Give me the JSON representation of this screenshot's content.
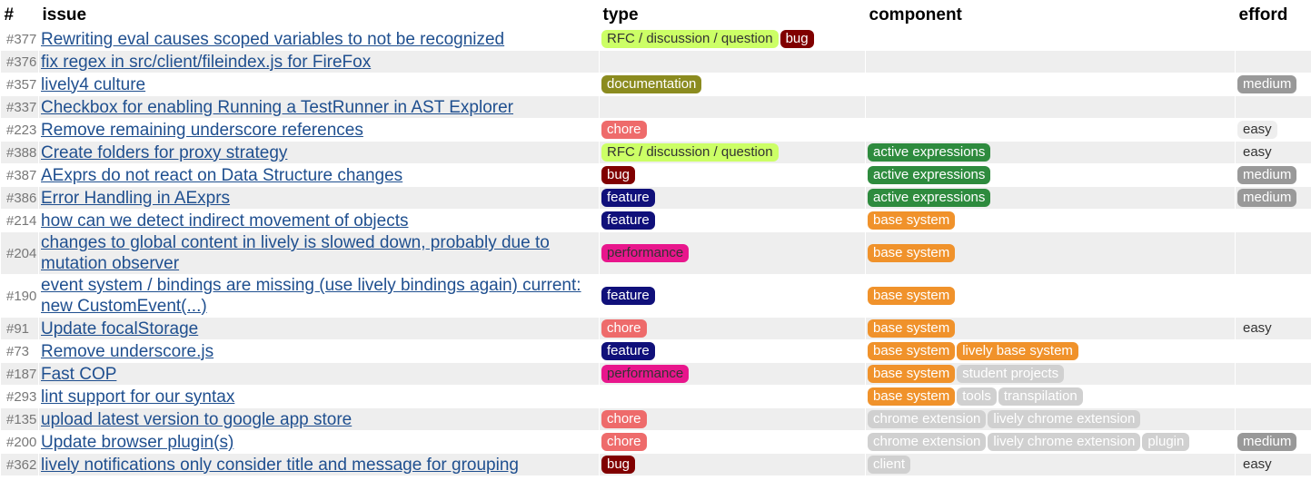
{
  "header": {
    "number": "#",
    "issue": "issue",
    "type": "type",
    "component": "component",
    "efford": "efford"
  },
  "label_colors": {
    "RFC / discussion / question": {
      "bg": "#ccff66",
      "fg": "#333333"
    },
    "bug": {
      "bg": "#800000",
      "fg": "#ffffff"
    },
    "documentation": {
      "bg": "#8b8b1f",
      "fg": "#ffffff"
    },
    "chore": {
      "bg": "#ee6b6b",
      "fg": "#ffffff"
    },
    "feature": {
      "bg": "#10107a",
      "fg": "#ffffff"
    },
    "performance": {
      "bg": "#e8168c",
      "fg": "#333333"
    },
    "active expressions": {
      "bg": "#2e8b3e",
      "fg": "#ffffff"
    },
    "base system": {
      "bg": "#f0922b",
      "fg": "#ffffff"
    },
    "lively base system": {
      "bg": "#f0922b",
      "fg": "#ffffff"
    },
    "student projects": {
      "bg": "#d0d0d0",
      "fg": "#ffffff"
    },
    "tools": {
      "bg": "#d0d0d0",
      "fg": "#ffffff"
    },
    "transpilation": {
      "bg": "#d0d0d0",
      "fg": "#ffffff"
    },
    "chrome extension": {
      "bg": "#d0d0d0",
      "fg": "#ffffff"
    },
    "lively chrome extension": {
      "bg": "#d0d0d0",
      "fg": "#ffffff"
    },
    "plugin": {
      "bg": "#d0d0d0",
      "fg": "#ffffff"
    },
    "client": {
      "bg": "#d0d0d0",
      "fg": "#ffffff"
    },
    "medium": {
      "bg": "#999999",
      "fg": "#ffffff"
    },
    "easy": {
      "bg": "#eeeeee",
      "fg": "#333333"
    }
  },
  "table": {
    "rows": [
      {
        "number": "#377",
        "issue": "Rewriting eval causes scoped variables to not be recognized",
        "type": [
          "RFC / discussion / question",
          "bug"
        ],
        "component": [],
        "efford": []
      },
      {
        "number": "#376",
        "issue": "fix regex in src/client/fileindex.js for FireFox",
        "type": [],
        "component": [],
        "efford": []
      },
      {
        "number": "#357",
        "issue": "lively4 culture",
        "type": [
          "documentation"
        ],
        "component": [],
        "efford": [
          "medium"
        ]
      },
      {
        "number": "#337",
        "issue": "Checkbox for enabling Running a TestRunner in AST Explorer",
        "type": [],
        "component": [],
        "efford": []
      },
      {
        "number": "#223",
        "issue": "Remove remaining underscore references",
        "type": [
          "chore"
        ],
        "component": [],
        "efford": [
          "easy"
        ]
      },
      {
        "number": "#388",
        "issue": "Create folders for proxy strategy",
        "type": [
          "RFC / discussion / question"
        ],
        "component": [
          "active expressions"
        ],
        "efford": [
          "easy"
        ]
      },
      {
        "number": "#387",
        "issue": "AExprs do not react on Data Structure changes",
        "type": [
          "bug"
        ],
        "component": [
          "active expressions"
        ],
        "efford": [
          "medium"
        ]
      },
      {
        "number": "#386",
        "issue": "Error Handling in AExprs",
        "type": [
          "feature"
        ],
        "component": [
          "active expressions"
        ],
        "efford": [
          "medium"
        ]
      },
      {
        "number": "#214",
        "issue": "how can we detect indirect movement of objects",
        "type": [
          "feature"
        ],
        "component": [
          "base system"
        ],
        "efford": []
      },
      {
        "number": "#204",
        "issue": "changes to global content in lively is slowed down, probably due to mutation observer",
        "type": [
          "performance"
        ],
        "component": [
          "base system"
        ],
        "efford": []
      },
      {
        "number": "#190",
        "issue": "event system / bindings are missing (use lively bindings again) current: new CustomEvent(...)",
        "type": [
          "feature"
        ],
        "component": [
          "base system"
        ],
        "efford": []
      },
      {
        "number": "#91",
        "issue": "Update focalStorage",
        "type": [
          "chore"
        ],
        "component": [
          "base system"
        ],
        "efford": [
          "easy"
        ]
      },
      {
        "number": "#73",
        "issue": "Remove underscore.js",
        "type": [
          "feature"
        ],
        "component": [
          "base system",
          "lively base system"
        ],
        "efford": []
      },
      {
        "number": "#187",
        "issue": "Fast COP",
        "type": [
          "performance"
        ],
        "component": [
          "base system",
          "student projects"
        ],
        "efford": []
      },
      {
        "number": "#293",
        "issue": "lint support for our syntax",
        "type": [],
        "component": [
          "base system",
          "tools",
          "transpilation"
        ],
        "efford": []
      },
      {
        "number": "#135",
        "issue": "upload latest version to google app store",
        "type": [
          "chore"
        ],
        "component": [
          "chrome extension",
          "lively chrome extension"
        ],
        "efford": []
      },
      {
        "number": "#200",
        "issue": "Update browser plugin(s)",
        "type": [
          "chore"
        ],
        "component": [
          "chrome extension",
          "lively chrome extension",
          "plugin"
        ],
        "efford": [
          "medium"
        ]
      },
      {
        "number": "#362",
        "issue": "lively notifications only consider title and message for grouping",
        "type": [
          "bug"
        ],
        "component": [
          "client"
        ],
        "efford": [
          "easy"
        ]
      }
    ]
  }
}
